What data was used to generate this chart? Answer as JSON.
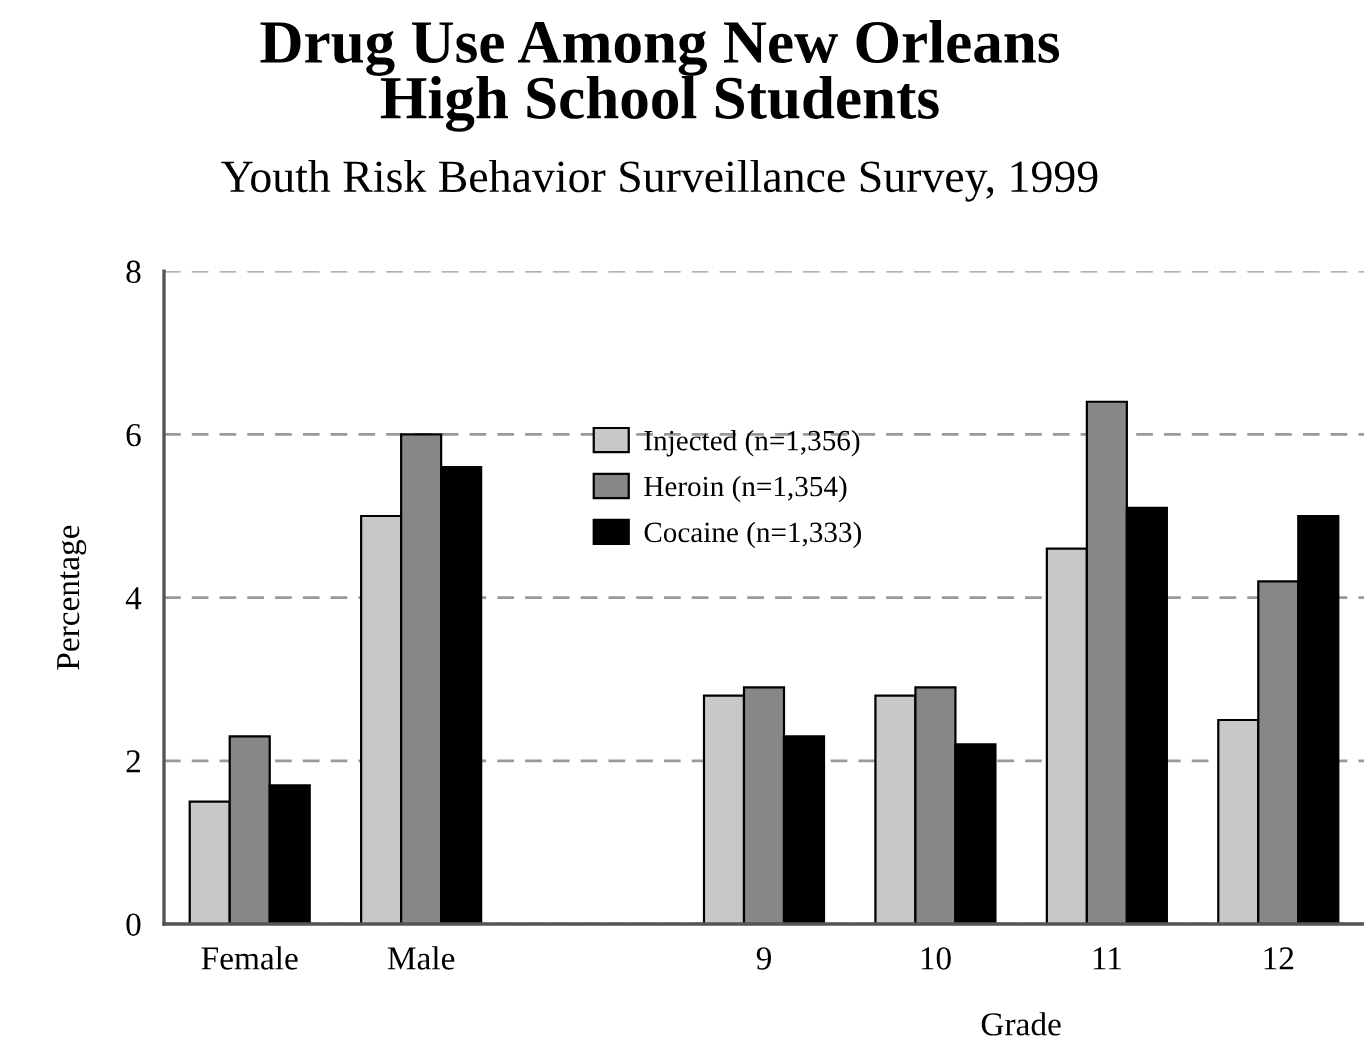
{
  "chart_data": {
    "type": "bar",
    "title": "Drug Use Among New Orleans\nHigh School Students",
    "subtitle": "Youth Risk Behavior Surveillance Survey, 1999",
    "ylabel": "Percentage",
    "xlabel": "Grade",
    "categories": [
      "Female",
      "Male",
      null,
      "9",
      "10",
      "11",
      "12"
    ],
    "series": [
      {
        "name": "Injected (n=1,356)",
        "color": "#c8c8c8",
        "values": [
          1.5,
          5.0,
          null,
          2.8,
          2.8,
          4.6,
          2.5
        ]
      },
      {
        "name": "Heroin (n=1,354)",
        "color": "#878787",
        "values": [
          2.3,
          6.0,
          null,
          2.9,
          2.9,
          6.4,
          4.2
        ]
      },
      {
        "name": "Cocaine (n=1,333)",
        "color": "#000000",
        "values": [
          1.7,
          5.6,
          null,
          2.3,
          2.2,
          5.1,
          5.0
        ]
      }
    ],
    "ylim": [
      0,
      8
    ],
    "yticks": [
      0,
      2,
      4,
      6,
      8
    ],
    "grid": "y",
    "legend": "top center"
  }
}
